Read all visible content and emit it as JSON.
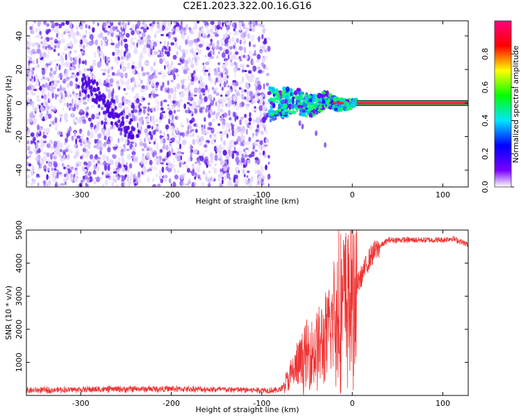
{
  "title": "C2E1.2023.322.00.16.G16",
  "colors": {
    "snr_line": "#ee3333",
    "noise_fill": "#7a3cf0",
    "strong_fill": "#4a00dd"
  },
  "chart_data": [
    {
      "type": "heatmap",
      "title": "C2E1.2023.322.00.16.G16",
      "xlabel": "Height of straight line (km)",
      "ylabel": "Frequency (Hz)",
      "xlim": [
        -360,
        128
      ],
      "ylim": [
        -50,
        49
      ],
      "xticks": [
        -300,
        -200,
        -100,
        0,
        100
      ],
      "yticks": [
        -40,
        -20,
        0,
        20,
        40
      ],
      "colorbar": {
        "label": "Normalized spectral amplitude",
        "range": [
          0,
          1
        ],
        "ticks": [
          "0.0",
          "0.2",
          "0.4",
          "0.6",
          "0.8"
        ],
        "tick_values": [
          0,
          0.2,
          0.4,
          0.6,
          0.8
        ]
      },
      "regions": [
        {
          "name": "noise",
          "x_range": [
            -360,
            -92
          ],
          "y_range": [
            -50,
            49
          ]
        },
        {
          "name": "signal",
          "x_range": [
            -92,
            5
          ],
          "y_range": [
            -10,
            10
          ]
        },
        {
          "name": "steady-tone",
          "x_range": [
            5,
            128
          ],
          "y_value": 0
        }
      ]
    },
    {
      "type": "line",
      "xlabel": "Height of straight line (km)",
      "ylabel": "SNR (10 * v/v)",
      "xlim": [
        -360,
        128
      ],
      "ylim": [
        0,
        5000
      ],
      "xticks": [
        -300,
        -200,
        -100,
        0,
        100
      ],
      "yticks": [
        1000,
        2000,
        3000,
        4000,
        5000
      ],
      "x": [
        -360,
        -300,
        -250,
        -200,
        -150,
        -100,
        -80,
        -70,
        -60,
        -50,
        -40,
        -30,
        -20,
        -15,
        -10,
        -5,
        0,
        5,
        10,
        15,
        20,
        30,
        40,
        60,
        80,
        100,
        110,
        120,
        128
      ],
      "y": [
        150,
        180,
        190,
        200,
        180,
        160,
        160,
        500,
        900,
        1200,
        1400,
        1600,
        2300,
        2700,
        2800,
        2900,
        3000,
        3300,
        3600,
        3900,
        4200,
        4500,
        4700,
        4700,
        4700,
        4700,
        4750,
        4650,
        4550
      ]
    }
  ]
}
